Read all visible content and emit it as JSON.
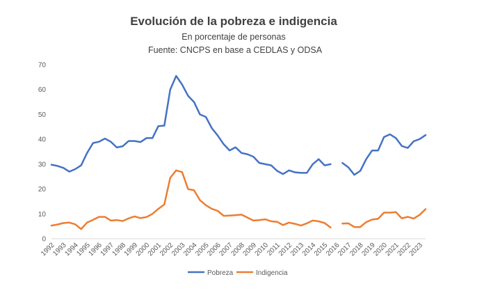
{
  "chart_data": {
    "type": "line",
    "title": "Evolución de la pobreza e indigencia",
    "subtitle": "En porcentaje de personas",
    "source": "Fuente: CNCPS en base a CEDLAS y ODSA",
    "xlabel": "",
    "ylabel": "",
    "ylim": [
      0,
      70
    ],
    "yticks": [
      0,
      10,
      20,
      30,
      40,
      50,
      60,
      70
    ],
    "categories": [
      "1992",
      "1993",
      "1994",
      "1995",
      "1996",
      "1997",
      "1998",
      "1999",
      "2000",
      "2001",
      "2002",
      "2003",
      "2004",
      "2005",
      "2006",
      "2007",
      "2008",
      "2009",
      "2010",
      "2011",
      "2012",
      "2013",
      "2014",
      "2015",
      "2016",
      "2017",
      "2018",
      "2019",
      "2020",
      "2021",
      "2022",
      "2023"
    ],
    "grid": false,
    "legend_position": "bottom",
    "series": [
      {
        "name": "Pobreza",
        "color": "#4472C4",
        "points": [
          [
            1992.0,
            29.8
          ],
          [
            1992.5,
            29.3
          ],
          [
            1993.0,
            28.5
          ],
          [
            1993.5,
            27.0
          ],
          [
            1994.0,
            28.0
          ],
          [
            1994.5,
            29.5
          ],
          [
            1995.0,
            34.5
          ],
          [
            1995.5,
            38.5
          ],
          [
            1996.0,
            39.0
          ],
          [
            1996.5,
            40.3
          ],
          [
            1997.0,
            39.0
          ],
          [
            1997.5,
            36.7
          ],
          [
            1998.0,
            37.2
          ],
          [
            1998.5,
            39.3
          ],
          [
            1999.0,
            39.3
          ],
          [
            1999.5,
            38.9
          ],
          [
            2000.0,
            40.5
          ],
          [
            2000.5,
            40.5
          ],
          [
            2001.0,
            45.3
          ],
          [
            2001.5,
            45.5
          ],
          [
            2002.0,
            60.0
          ],
          [
            2002.5,
            65.5
          ],
          [
            2003.0,
            62.0
          ],
          [
            2003.5,
            57.5
          ],
          [
            2004.0,
            55.0
          ],
          [
            2004.5,
            50.0
          ],
          [
            2005.0,
            49.0
          ],
          [
            2005.5,
            44.5
          ],
          [
            2006.0,
            41.5
          ],
          [
            2006.5,
            38.0
          ],
          [
            2007.0,
            35.5
          ],
          [
            2007.5,
            36.8
          ],
          [
            2008.0,
            34.5
          ],
          [
            2008.5,
            34.0
          ],
          [
            2009.0,
            33.0
          ],
          [
            2009.5,
            30.5
          ],
          [
            2010.0,
            30.0
          ],
          [
            2010.5,
            29.5
          ],
          [
            2011.0,
            27.3
          ],
          [
            2011.5,
            26.0
          ],
          [
            2012.0,
            27.5
          ],
          [
            2012.5,
            26.7
          ],
          [
            2013.0,
            26.5
          ],
          [
            2013.5,
            26.5
          ],
          [
            2014.0,
            30.0
          ],
          [
            2014.5,
            32.0
          ],
          [
            2015.0,
            29.5
          ],
          [
            2015.5,
            30.0
          ],
          null,
          [
            2016.5,
            30.5
          ],
          [
            2017.0,
            28.7
          ],
          [
            2017.5,
            25.7
          ],
          [
            2018.0,
            27.3
          ],
          [
            2018.5,
            32.0
          ],
          [
            2019.0,
            35.5
          ],
          [
            2019.5,
            35.5
          ],
          [
            2020.0,
            40.9
          ],
          [
            2020.5,
            42.0
          ],
          [
            2021.0,
            40.5
          ],
          [
            2021.5,
            37.3
          ],
          [
            2022.0,
            36.5
          ],
          [
            2022.5,
            39.2
          ],
          [
            2023.0,
            40.1
          ],
          [
            2023.5,
            41.7
          ]
        ]
      },
      {
        "name": "Indigencia",
        "color": "#ED7D31",
        "points": [
          [
            1992.0,
            5.3
          ],
          [
            1992.5,
            5.7
          ],
          [
            1993.0,
            6.3
          ],
          [
            1993.5,
            6.5
          ],
          [
            1994.0,
            5.8
          ],
          [
            1994.5,
            3.9
          ],
          [
            1995.0,
            6.5
          ],
          [
            1995.5,
            7.6
          ],
          [
            1996.0,
            8.8
          ],
          [
            1996.5,
            8.8
          ],
          [
            1997.0,
            7.3
          ],
          [
            1997.5,
            7.5
          ],
          [
            1998.0,
            7.1
          ],
          [
            1998.5,
            8.2
          ],
          [
            1999.0,
            9.0
          ],
          [
            1999.5,
            8.3
          ],
          [
            2000.0,
            8.7
          ],
          [
            2000.5,
            10.0
          ],
          [
            2001.0,
            12.0
          ],
          [
            2001.5,
            13.8
          ],
          [
            2002.0,
            24.5
          ],
          [
            2002.5,
            27.5
          ],
          [
            2003.0,
            26.8
          ],
          [
            2003.5,
            20.0
          ],
          [
            2004.0,
            19.5
          ],
          [
            2004.5,
            15.5
          ],
          [
            2005.0,
            13.5
          ],
          [
            2005.5,
            12.0
          ],
          [
            2006.0,
            11.2
          ],
          [
            2006.5,
            9.2
          ],
          [
            2007.0,
            9.3
          ],
          [
            2007.5,
            9.5
          ],
          [
            2008.0,
            9.7
          ],
          [
            2008.5,
            8.5
          ],
          [
            2009.0,
            7.3
          ],
          [
            2009.5,
            7.5
          ],
          [
            2010.0,
            7.8
          ],
          [
            2010.5,
            7.0
          ],
          [
            2011.0,
            6.8
          ],
          [
            2011.5,
            5.5
          ],
          [
            2012.0,
            6.5
          ],
          [
            2012.5,
            6.0
          ],
          [
            2013.0,
            5.3
          ],
          [
            2013.5,
            6.2
          ],
          [
            2014.0,
            7.3
          ],
          [
            2014.5,
            7.0
          ],
          [
            2015.0,
            6.3
          ],
          [
            2015.5,
            4.5
          ],
          null,
          [
            2016.5,
            6.1
          ],
          [
            2017.0,
            6.2
          ],
          [
            2017.5,
            4.7
          ],
          [
            2018.0,
            4.7
          ],
          [
            2018.5,
            6.7
          ],
          [
            2019.0,
            7.7
          ],
          [
            2019.5,
            8.0
          ],
          [
            2020.0,
            10.5
          ],
          [
            2020.5,
            10.5
          ],
          [
            2021.0,
            10.7
          ],
          [
            2021.5,
            8.2
          ],
          [
            2022.0,
            8.8
          ],
          [
            2022.5,
            8.1
          ],
          [
            2023.0,
            9.6
          ],
          [
            2023.5,
            11.9
          ]
        ]
      }
    ]
  }
}
